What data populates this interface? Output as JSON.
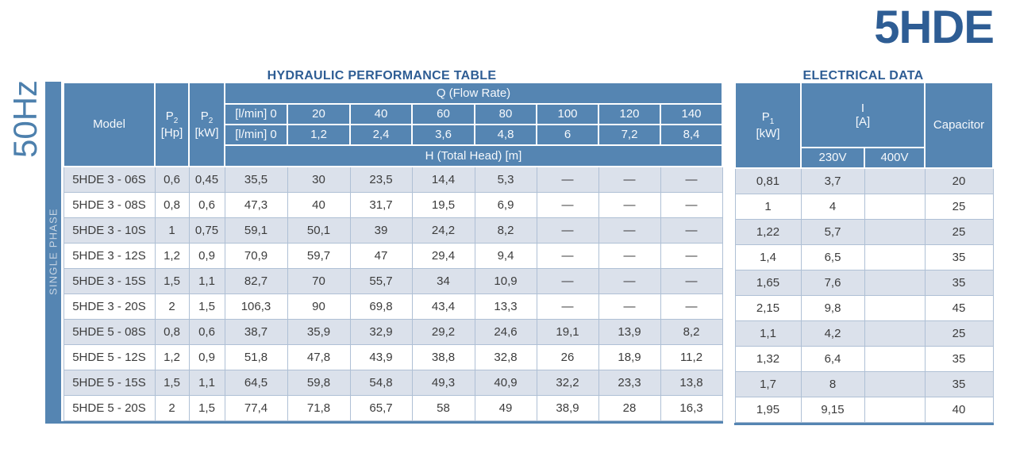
{
  "page": {
    "product_title": "5HDE",
    "frequency": "50Hz",
    "phase_label": "SINGLE PHASE"
  },
  "colors": {
    "header_blue": "#5585b2",
    "title_navy": "#2e5d94",
    "freq_blue": "#4d80ad",
    "shaded_row": "#dbe1eb",
    "cell_border": "#afc0d5",
    "body_text": "#3c3c3c"
  },
  "hydraulic": {
    "title": "HYDRAULIC PERFORMANCE TABLE",
    "header": {
      "model": "Model",
      "p_letter": "P",
      "p2_sub": "2",
      "hp_unit": "[Hp]",
      "kw_unit": "[kW]",
      "q_title": "Q (Flow Rate)",
      "flow_lmin_row": {
        "label": "[l/min] 0",
        "values": [
          "20",
          "40",
          "60",
          "80",
          "100",
          "120",
          "140"
        ]
      },
      "flow_m3h_row": {
        "label": "[l/min] 0",
        "values": [
          "1,2",
          "2,4",
          "3,6",
          "4,8",
          "6",
          "7,2",
          "8,4"
        ]
      },
      "h_title": "H (Total Head) [m]"
    },
    "rows": [
      {
        "model": "5HDE 3 - 06S",
        "p2_hp": "0,6",
        "p2_kw": "0,45",
        "head": [
          "35,5",
          "30",
          "23,5",
          "14,4",
          "5,3",
          "—",
          "—",
          "—"
        ]
      },
      {
        "model": "5HDE 3 - 08S",
        "p2_hp": "0,8",
        "p2_kw": "0,6",
        "head": [
          "47,3",
          "40",
          "31,7",
          "19,5",
          "6,9",
          "—",
          "—",
          "—"
        ]
      },
      {
        "model": "5HDE 3 - 10S",
        "p2_hp": "1",
        "p2_kw": "0,75",
        "head": [
          "59,1",
          "50,1",
          "39",
          "24,2",
          "8,2",
          "—",
          "—",
          "—"
        ]
      },
      {
        "model": "5HDE 3 - 12S",
        "p2_hp": "1,2",
        "p2_kw": "0,9",
        "head": [
          "70,9",
          "59,7",
          "47",
          "29,4",
          "9,4",
          "—",
          "—",
          "—"
        ]
      },
      {
        "model": "5HDE 3 - 15S",
        "p2_hp": "1,5",
        "p2_kw": "1,1",
        "head": [
          "82,7",
          "70",
          "55,7",
          "34",
          "10,9",
          "—",
          "—",
          "—"
        ]
      },
      {
        "model": "5HDE 3 - 20S",
        "p2_hp": "2",
        "p2_kw": "1,5",
        "head": [
          "106,3",
          "90",
          "69,8",
          "43,4",
          "13,3",
          "—",
          "—",
          "—"
        ]
      },
      {
        "model": "5HDE 5 - 08S",
        "p2_hp": "0,8",
        "p2_kw": "0,6",
        "head": [
          "38,7",
          "35,9",
          "32,9",
          "29,2",
          "24,6",
          "19,1",
          "13,9",
          "8,2"
        ]
      },
      {
        "model": "5HDE 5 - 12S",
        "p2_hp": "1,2",
        "p2_kw": "0,9",
        "head": [
          "51,8",
          "47,8",
          "43,9",
          "38,8",
          "32,8",
          "26",
          "18,9",
          "11,2"
        ]
      },
      {
        "model": "5HDE 5 - 15S",
        "p2_hp": "1,5",
        "p2_kw": "1,1",
        "head": [
          "64,5",
          "59,8",
          "54,8",
          "49,3",
          "40,9",
          "32,2",
          "23,3",
          "13,8"
        ]
      },
      {
        "model": "5HDE 5 - 20S",
        "p2_hp": "2",
        "p2_kw": "1,5",
        "head": [
          "77,4",
          "71,8",
          "65,7",
          "58",
          "49",
          "38,9",
          "28",
          "16,3"
        ]
      }
    ]
  },
  "electrical": {
    "title": "ELECTRICAL DATA",
    "header": {
      "p_letter": "P",
      "p1_sub": "1",
      "kw_unit": "[kW]",
      "i_label": "I",
      "a_unit": "[A]",
      "v230": "230V",
      "v400": "400V",
      "capacitor": "Capacitor"
    },
    "rows": [
      {
        "p1_kw": "0,81",
        "i_230": "3,7",
        "i_400": "",
        "capacitor": "20"
      },
      {
        "p1_kw": "1",
        "i_230": "4",
        "i_400": "",
        "capacitor": "25"
      },
      {
        "p1_kw": "1,22",
        "i_230": "5,7",
        "i_400": "",
        "capacitor": "25"
      },
      {
        "p1_kw": "1,4",
        "i_230": "6,5",
        "i_400": "",
        "capacitor": "35"
      },
      {
        "p1_kw": "1,65",
        "i_230": "7,6",
        "i_400": "",
        "capacitor": "35"
      },
      {
        "p1_kw": "2,15",
        "i_230": "9,8",
        "i_400": "",
        "capacitor": "45"
      },
      {
        "p1_kw": "1,1",
        "i_230": "4,2",
        "i_400": "",
        "capacitor": "25"
      },
      {
        "p1_kw": "1,32",
        "i_230": "6,4",
        "i_400": "",
        "capacitor": "35"
      },
      {
        "p1_kw": "1,7",
        "i_230": "8",
        "i_400": "",
        "capacitor": "35"
      },
      {
        "p1_kw": "1,95",
        "i_230": "9,15",
        "i_400": "",
        "capacitor": "40"
      }
    ]
  }
}
